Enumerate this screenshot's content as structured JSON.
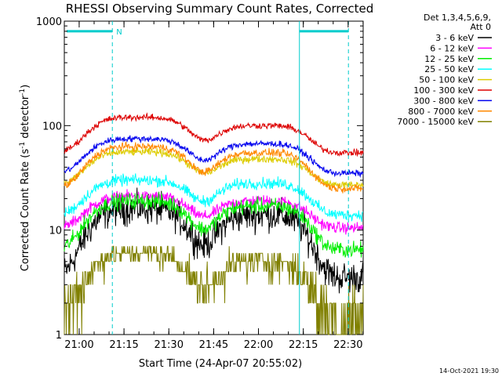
{
  "chart_data": {
    "type": "line",
    "title": "RHESSI Observing Summary Count Rates, Corrected",
    "xlabel": "Start Time (24-Apr-07 20:55:02)",
    "ylabel_prefix": "Corrected Count Rate (s",
    "ylabel_sup1": "-1",
    "ylabel_mid": " detector",
    "ylabel_sup2": "-1",
    "ylabel_suffix": ")",
    "yscale": "log",
    "ylim": [
      1,
      1000
    ],
    "xlim_minutes": [
      -4.97,
      95.03
    ],
    "x_ticks": [
      {
        "label": "21:00",
        "minutes": 0
      },
      {
        "label": "21:15",
        "minutes": 15
      },
      {
        "label": "21:30",
        "minutes": 30
      },
      {
        "label": "21:45",
        "minutes": 45
      },
      {
        "label": "22:00",
        "minutes": 60
      },
      {
        "label": "22:15",
        "minutes": 75
      },
      {
        "label": "22:30",
        "minutes": 90
      }
    ],
    "y_ticks": [
      {
        "label": "1",
        "value": 1
      },
      {
        "label": "10",
        "value": 10
      },
      {
        "label": "100",
        "value": 100
      },
      {
        "label": "1000",
        "value": 1000
      }
    ],
    "legend_header_line1": "Det 1,3,4,5,6,9,",
    "legend_header_line2": "Att 0",
    "series": [
      {
        "name": "3 - 6 keV",
        "color": "#000000",
        "base": 3.5,
        "peaks": [
          16,
          14
        ],
        "noise": 0.5
      },
      {
        "name": "6 - 12 keV",
        "color": "#ff00ff",
        "base": 10.5,
        "peaks": [
          21,
          19
        ],
        "noise": 0.18
      },
      {
        "name": "12 - 25 keV",
        "color": "#00ee00",
        "base": 6.5,
        "peaks": [
          19,
          17
        ],
        "noise": 0.25
      },
      {
        "name": "25 - 50 keV",
        "color": "#00ffff",
        "base": 14,
        "peaks": [
          30,
          28
        ],
        "noise": 0.18
      },
      {
        "name": "50 - 100 keV",
        "color": "#ddcc00",
        "base": 27,
        "peaks": [
          56,
          48
        ],
        "noise": 0.12
      },
      {
        "name": "100 - 300 keV",
        "color": "#dd0000",
        "base": 55,
        "peaks": [
          120,
          100
        ],
        "noise": 0.1
      },
      {
        "name": "300 - 800 keV",
        "color": "#0000ee",
        "base": 35,
        "peaks": [
          75,
          67
        ],
        "noise": 0.1
      },
      {
        "name": "800 - 7000 keV",
        "color": "#ff8800",
        "base": 25,
        "peaks": [
          63,
          55
        ],
        "noise": 0.12
      },
      {
        "name": "7000 - 15000 keV",
        "color": "#808000",
        "base": 1.5,
        "peaks": [
          6,
          5
        ],
        "noise": 0.6
      }
    ],
    "peak_centers_minutes": [
      20,
      61
    ],
    "peak_widths_minutes": [
      11,
      10
    ],
    "markers": {
      "vertical_lines_minutes": [
        11.1,
        73.7,
        90.1
      ],
      "segment1_minutes": [
        -4.2,
        11.1
      ],
      "segment2_minutes": [
        73.7,
        90.1
      ],
      "segment_value": 800,
      "segment_label": "N"
    }
  },
  "footer": {
    "timestamp": "14-Oct-2021 19:30"
  }
}
